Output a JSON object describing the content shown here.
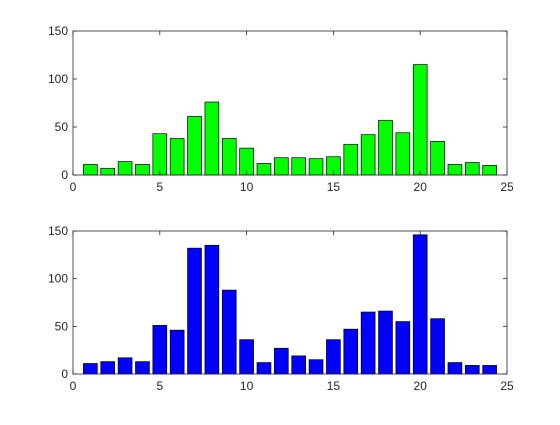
{
  "chart_data": [
    {
      "type": "bar",
      "x": [
        1,
        2,
        3,
        4,
        5,
        6,
        7,
        8,
        9,
        10,
        11,
        12,
        13,
        14,
        15,
        16,
        17,
        18,
        19,
        20,
        21,
        22,
        23,
        24
      ],
      "values": [
        11,
        7,
        14,
        11,
        43,
        38,
        61,
        76,
        38,
        28,
        12,
        18,
        18,
        17,
        19,
        32,
        42,
        57,
        44,
        115,
        35,
        11,
        13,
        10
      ],
      "xlim": [
        0,
        25
      ],
      "ylim": [
        0,
        150
      ],
      "xticks": [
        "0",
        "5",
        "10",
        "15",
        "20",
        "25"
      ],
      "yticks": [
        "0",
        "50",
        "100",
        "150"
      ],
      "bar_color": "#00ff00",
      "edge_color": "#000000",
      "grid": false
    },
    {
      "type": "bar",
      "x": [
        1,
        2,
        3,
        4,
        5,
        6,
        7,
        8,
        9,
        10,
        11,
        12,
        13,
        14,
        15,
        16,
        17,
        18,
        19,
        20,
        21,
        22,
        23,
        24
      ],
      "values": [
        11,
        13,
        17,
        13,
        51,
        46,
        132,
        135,
        88,
        36,
        12,
        27,
        19,
        15,
        36,
        47,
        65,
        66,
        55,
        146,
        58,
        12,
        9,
        9
      ],
      "xlim": [
        0,
        25
      ],
      "ylim": [
        0,
        150
      ],
      "xticks": [
        "0",
        "5",
        "10",
        "15",
        "20",
        "25"
      ],
      "yticks": [
        "0",
        "50",
        "100",
        "150"
      ],
      "bar_color": "#0000ff",
      "edge_color": "#000000",
      "grid": false
    }
  ]
}
